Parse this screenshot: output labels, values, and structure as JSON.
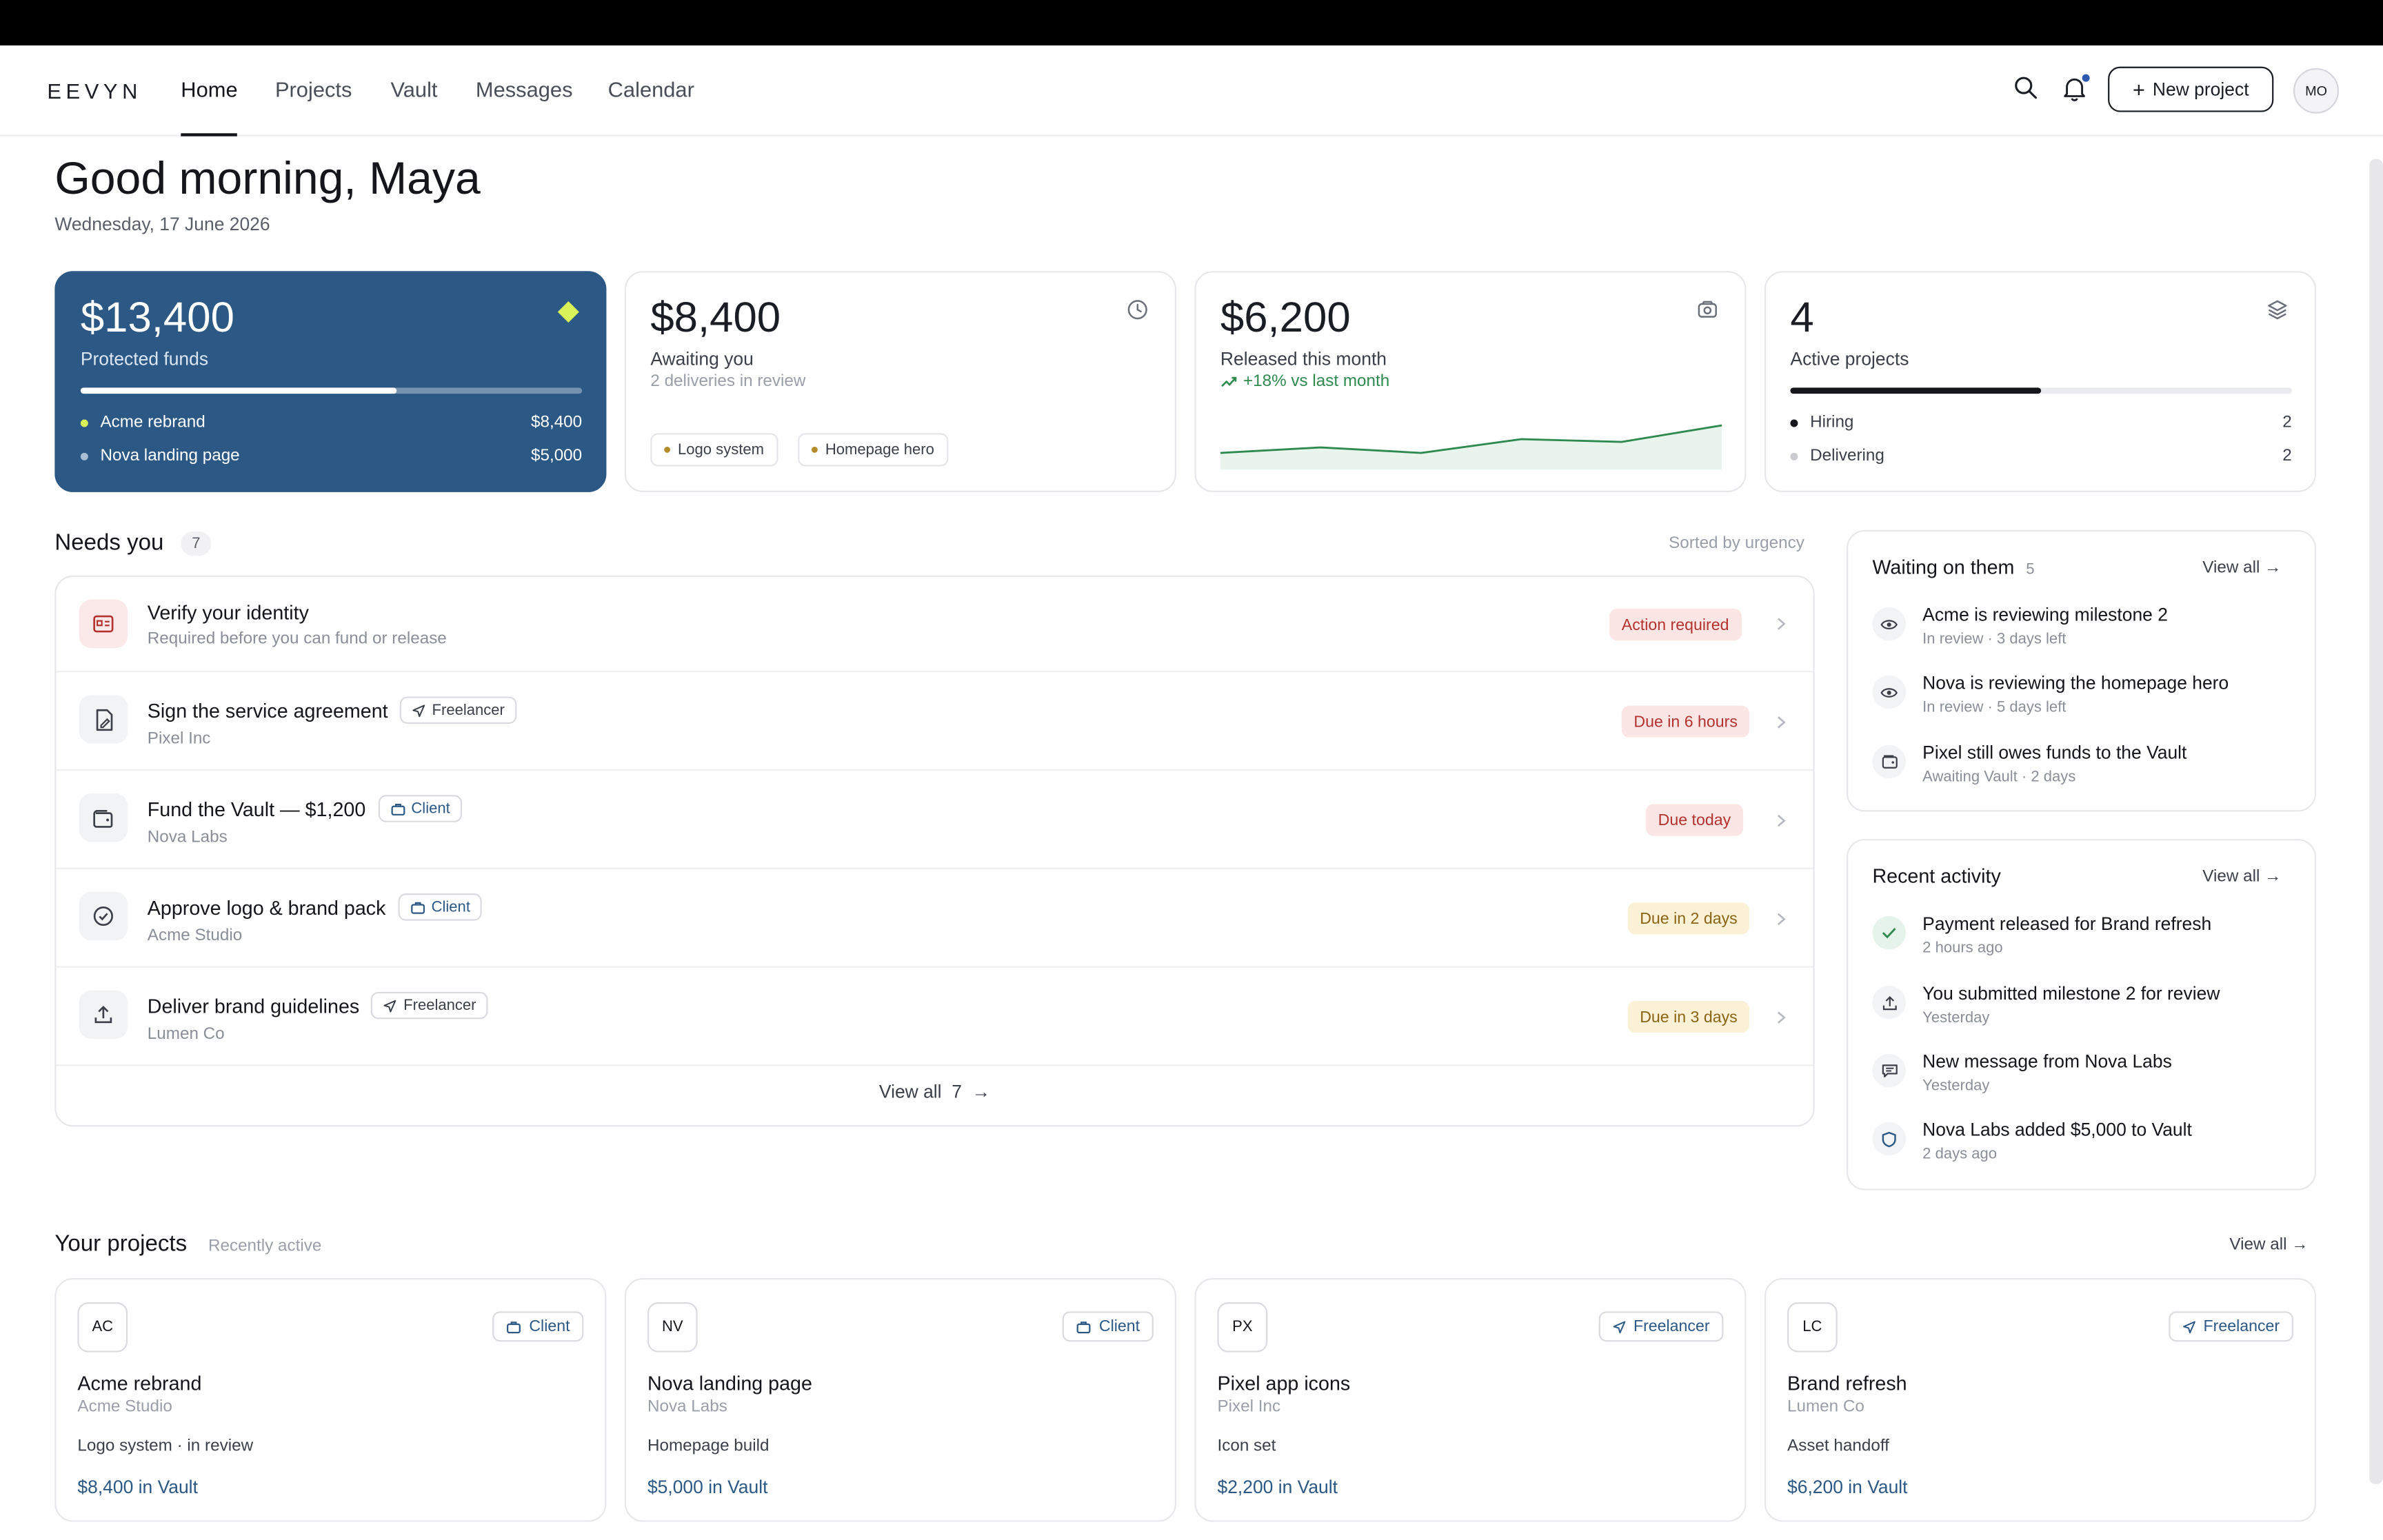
{
  "nav": {
    "logo": "EEVYN",
    "links": [
      "Home",
      "Projects",
      "Vault",
      "Messages",
      "Calendar"
    ],
    "new_project": "New project",
    "avatar": "MO",
    "icons": [
      "search-icon",
      "bell-icon",
      "plus-icon"
    ]
  },
  "header": {
    "greeting": "Good morning, Maya",
    "date": "Wednesday, 17 June 2026"
  },
  "stats": {
    "protected": {
      "amount": "$13,400",
      "label": "Protected funds",
      "progress": 0.63,
      "rows": [
        {
          "label": "Acme rebrand",
          "value": "$8,400"
        },
        {
          "label": "Nova landing page",
          "value": "$5,000"
        }
      ]
    },
    "awaiting": {
      "amount": "$8,400",
      "label": "Awaiting you",
      "sub": "2 deliveries in review",
      "pills": [
        "Logo system",
        "Homepage hero"
      ]
    },
    "released": {
      "amount": "$6,200",
      "label": "Released this month",
      "trend": "+18% vs last month",
      "sparkline": [
        6,
        8,
        6,
        11,
        10,
        16
      ]
    },
    "active": {
      "amount": "4",
      "label": "Active projects",
      "progress": 0.5,
      "rows": [
        {
          "label": "Hiring",
          "value": "2"
        },
        {
          "label": "Delivering",
          "value": "2"
        }
      ]
    }
  },
  "needs": {
    "title": "Needs you",
    "count": "7",
    "sort": "Sorted by urgency",
    "items": [
      {
        "title": "Verify your identity",
        "sub": "Required before you can fund or release",
        "role": "",
        "badge": "Action required",
        "tone": "red",
        "icon": "id-card-icon"
      },
      {
        "title": "Sign the service agreement",
        "sub": "Pixel Inc",
        "role": "Freelancer",
        "badge": "Due in 6 hours",
        "tone": "red",
        "icon": "document-sign-icon"
      },
      {
        "title": "Fund the Vault — $1,200",
        "sub": "Nova Labs",
        "role": "Client",
        "badge": "Due today",
        "tone": "red",
        "icon": "wallet-icon"
      },
      {
        "title": "Approve logo & brand pack",
        "sub": "Acme Studio",
        "role": "Client",
        "badge": "Due in 2 days",
        "tone": "amber",
        "icon": "check-circle-icon"
      },
      {
        "title": "Deliver brand guidelines",
        "sub": "Lumen Co",
        "role": "Freelancer",
        "badge": "Due in 3 days",
        "tone": "amber",
        "icon": "upload-icon"
      }
    ],
    "view_all": "View all  7  →"
  },
  "waiting": {
    "title": "Waiting on them",
    "count": "5",
    "view_all": "View all →",
    "items": [
      {
        "text": "Acme is reviewing milestone 2",
        "sub": "In review · 3 days left",
        "icon": "eye-icon"
      },
      {
        "text": "Nova is reviewing the homepage hero",
        "sub": "In review · 5 days left",
        "icon": "eye-icon"
      },
      {
        "text": "Pixel still owes funds to the Vault",
        "sub": "Awaiting Vault · 2 days",
        "icon": "wallet-icon"
      }
    ]
  },
  "activity": {
    "title": "Recent activity",
    "view_all": "View all →",
    "items": [
      {
        "text": "Payment released for Brand refresh",
        "sub": "2 hours ago",
        "icon": "check-icon"
      },
      {
        "text": "You submitted milestone 2 for review",
        "sub": "Yesterday",
        "icon": "upload-icon"
      },
      {
        "text": "New message from Nova Labs",
        "sub": "Yesterday",
        "icon": "message-icon"
      },
      {
        "text": "Nova Labs added $5,000 to Vault",
        "sub": "2 days ago",
        "icon": "shield-icon"
      }
    ]
  },
  "projects": {
    "title": "Your projects",
    "sub": "Recently active",
    "view_all": "View all →",
    "items": [
      {
        "initials": "AC",
        "role": "Client",
        "name": "Acme rebrand",
        "client": "Acme Studio",
        "desc": "Logo system · in review",
        "vault": "$8,400 in Vault"
      },
      {
        "initials": "NV",
        "role": "Client",
        "name": "Nova landing page",
        "client": "Nova Labs",
        "desc": "Homepage build",
        "vault": "$5,000 in Vault"
      },
      {
        "initials": "PX",
        "role": "Freelancer",
        "name": "Pixel app icons",
        "client": "Pixel Inc",
        "desc": "Icon set",
        "vault": "$2,200 in Vault"
      },
      {
        "initials": "LC",
        "role": "Freelancer",
        "name": "Brand refresh",
        "client": "Lumen Co",
        "desc": "Asset handoff",
        "vault": "$6,200 in Vault"
      }
    ]
  },
  "colors": {
    "accent": "#2b5885",
    "accent_lime": "#d9f25a",
    "positive": "#2f8a4f",
    "danger": "#b3322e",
    "warning": "#8a6414"
  }
}
